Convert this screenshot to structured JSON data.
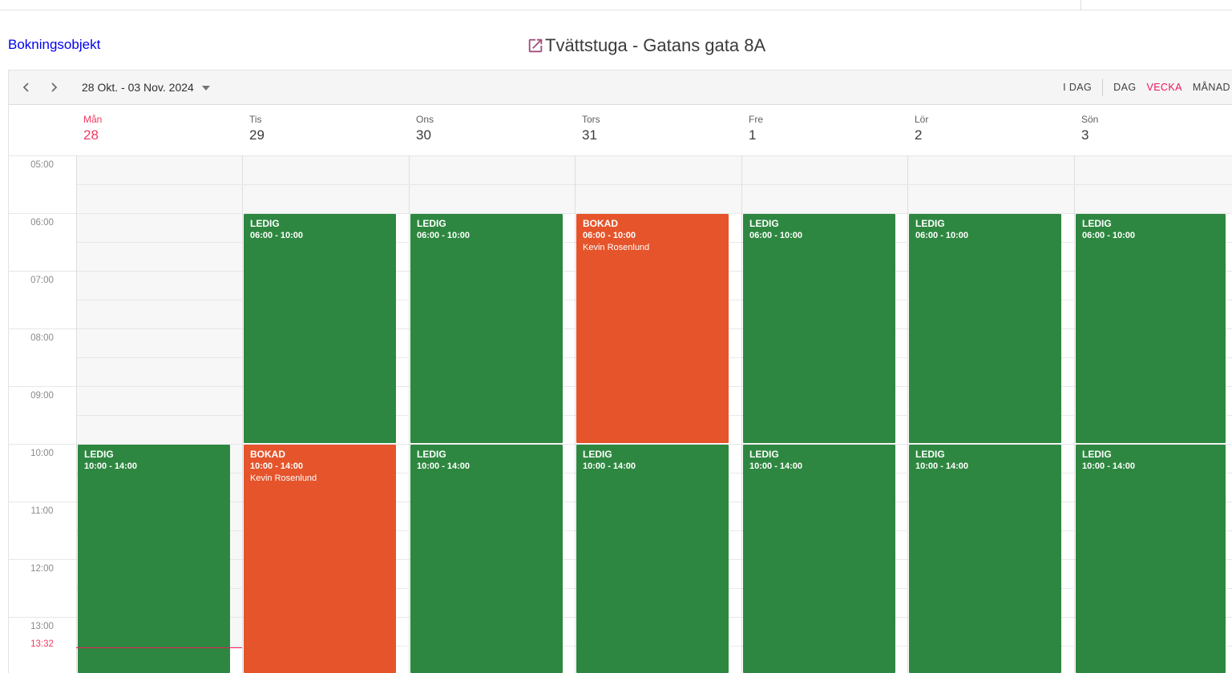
{
  "header": {
    "back_link": "Bokningsobjekt",
    "title": "Tvättstuga - Gatans gata 8A",
    "title_icon": "open-in-new-icon"
  },
  "toolbar": {
    "date_range": "28 Okt. - 03 Nov. 2024",
    "views": [
      {
        "id": "today",
        "label": "I DAG",
        "active": false
      },
      {
        "id": "day",
        "label": "DAG",
        "active": false
      },
      {
        "id": "week",
        "label": "VECKA",
        "active": true
      },
      {
        "id": "month",
        "label": "MÅNAD",
        "active": false
      }
    ]
  },
  "calendar": {
    "days": [
      {
        "name": "Mån",
        "number": "28",
        "today": true
      },
      {
        "name": "Tis",
        "number": "29",
        "today": false
      },
      {
        "name": "Ons",
        "number": "30",
        "today": false
      },
      {
        "name": "Tors",
        "number": "31",
        "today": false
      },
      {
        "name": "Fre",
        "number": "1",
        "today": false
      },
      {
        "name": "Lör",
        "number": "2",
        "today": false
      },
      {
        "name": "Sön",
        "number": "3",
        "today": false
      }
    ],
    "times": [
      "05:00",
      "06:00",
      "07:00",
      "08:00",
      "09:00",
      "10:00",
      "11:00",
      "12:00",
      "13:00"
    ],
    "now": {
      "label": "13:32",
      "day_index": 0,
      "hour": 13,
      "minute": 32
    },
    "events": [
      {
        "day": 0,
        "status": "LEDIG",
        "time_label": "10:00 - 14:00",
        "start": 10,
        "end": 14,
        "booked_by": ""
      },
      {
        "day": 1,
        "status": "LEDIG",
        "time_label": "06:00 - 10:00",
        "start": 6,
        "end": 10,
        "booked_by": ""
      },
      {
        "day": 1,
        "status": "BOKAD",
        "time_label": "10:00 - 14:00",
        "start": 10,
        "end": 14,
        "booked_by": "Kevin Rosenlund"
      },
      {
        "day": 2,
        "status": "LEDIG",
        "time_label": "06:00 - 10:00",
        "start": 6,
        "end": 10,
        "booked_by": ""
      },
      {
        "day": 2,
        "status": "LEDIG",
        "time_label": "10:00 - 14:00",
        "start": 10,
        "end": 14,
        "booked_by": ""
      },
      {
        "day": 3,
        "status": "BOKAD",
        "time_label": "06:00 - 10:00",
        "start": 6,
        "end": 10,
        "booked_by": "Kevin Rosenlund"
      },
      {
        "day": 3,
        "status": "LEDIG",
        "time_label": "10:00 - 14:00",
        "start": 10,
        "end": 14,
        "booked_by": ""
      },
      {
        "day": 4,
        "status": "LEDIG",
        "time_label": "06:00 - 10:00",
        "start": 6,
        "end": 10,
        "booked_by": ""
      },
      {
        "day": 4,
        "status": "LEDIG",
        "time_label": "10:00 - 14:00",
        "start": 10,
        "end": 14,
        "booked_by": ""
      },
      {
        "day": 5,
        "status": "LEDIG",
        "time_label": "06:00 - 10:00",
        "start": 6,
        "end": 10,
        "booked_by": ""
      },
      {
        "day": 5,
        "status": "LEDIG",
        "time_label": "10:00 - 14:00",
        "start": 10,
        "end": 14,
        "booked_by": ""
      },
      {
        "day": 6,
        "status": "LEDIG",
        "time_label": "06:00 - 10:00",
        "start": 6,
        "end": 10,
        "booked_by": ""
      },
      {
        "day": 6,
        "status": "LEDIG",
        "time_label": "10:00 - 14:00",
        "start": 10,
        "end": 14,
        "booked_by": ""
      }
    ]
  },
  "colors": {
    "available": "#2e8740",
    "booked": "#e5542b",
    "accent": "#ee3a60",
    "active_view": "#ed145f",
    "link": "#9d567c"
  }
}
